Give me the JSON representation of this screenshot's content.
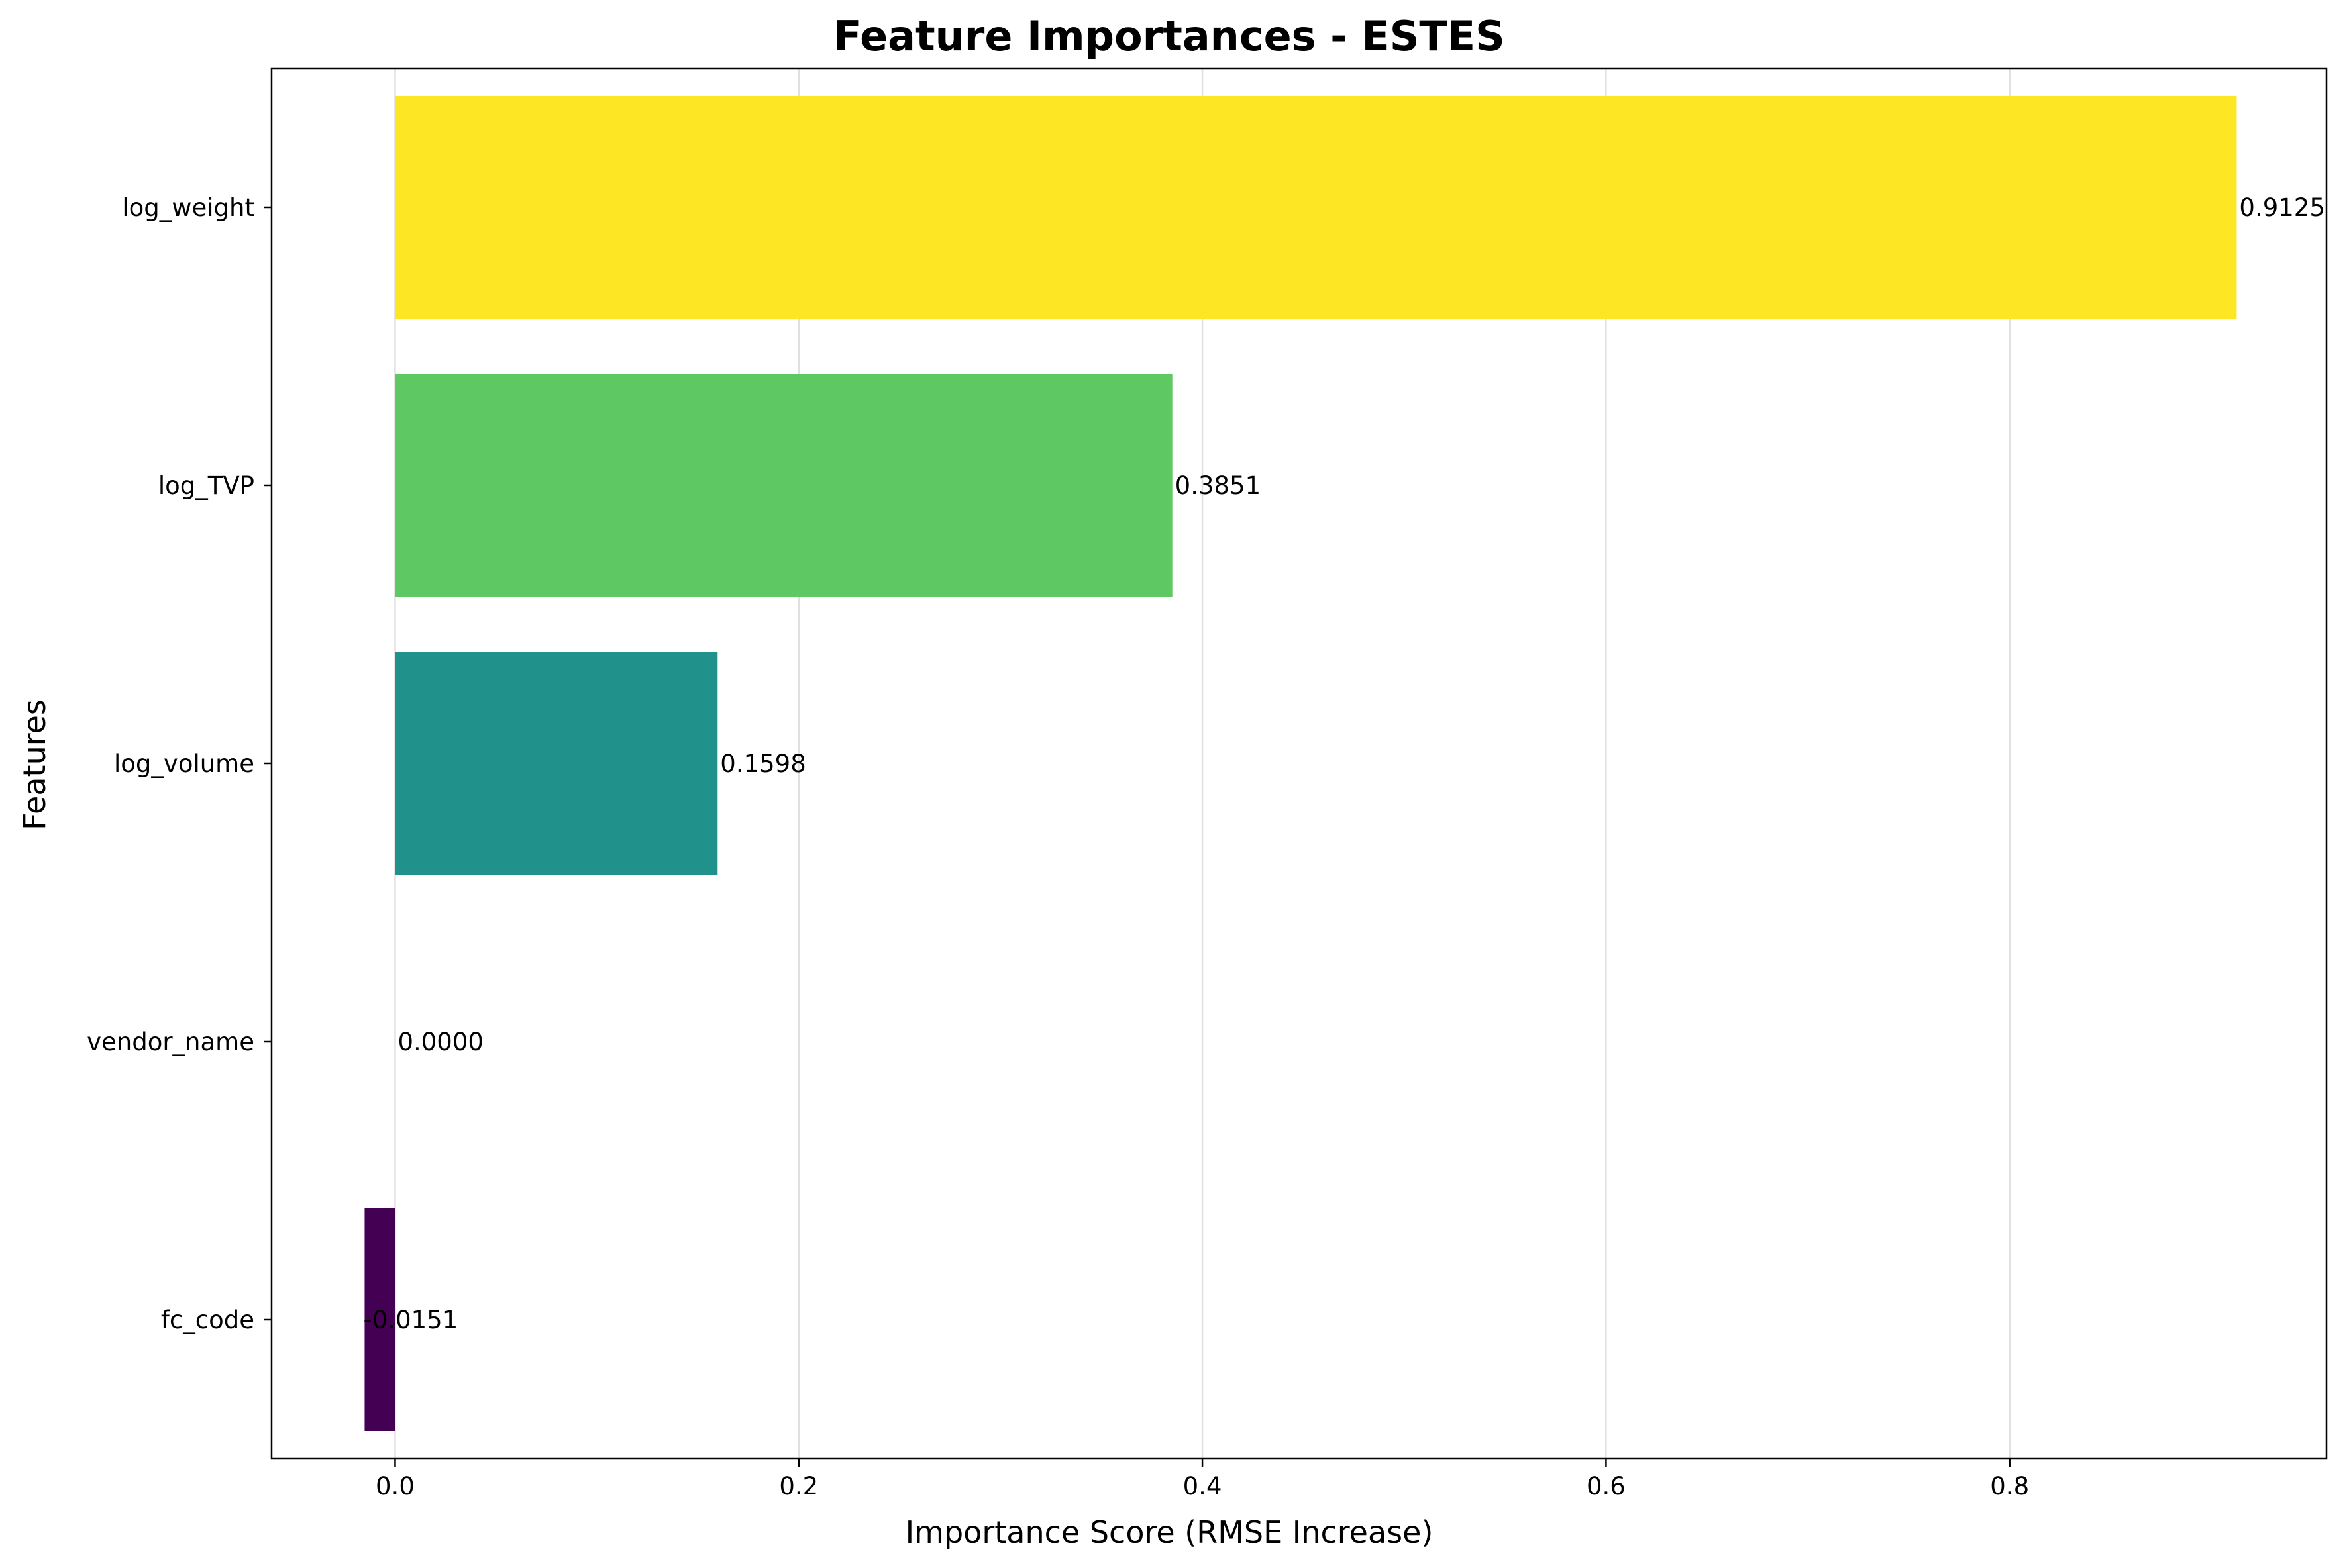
{
  "chart_data": {
    "type": "bar",
    "orientation": "horizontal",
    "title": "Feature Importances - ESTES",
    "xlabel": "Importance Score (RMSE Increase)",
    "ylabel": "Features",
    "categories": [
      "log_weight",
      "log_TVP",
      "log_volume",
      "vendor_name",
      "fc_code"
    ],
    "values": [
      0.9125,
      0.3851,
      0.1598,
      0.0,
      -0.0151
    ],
    "value_labels": [
      "0.9125",
      "0.3851",
      "0.1598",
      "0.0000",
      "-0.0151"
    ],
    "colors": [
      "#fde725",
      "#5ec962",
      "#21918c",
      "#3b528b",
      "#440154"
    ],
    "xlim": [
      -0.0612,
      0.957
    ],
    "xticks": [
      0.0,
      0.2,
      0.4,
      0.6,
      0.8
    ],
    "xtick_labels": [
      "0.0",
      "0.2",
      "0.4",
      "0.6",
      "0.8"
    ],
    "grid": "vertical",
    "legend": "none"
  }
}
